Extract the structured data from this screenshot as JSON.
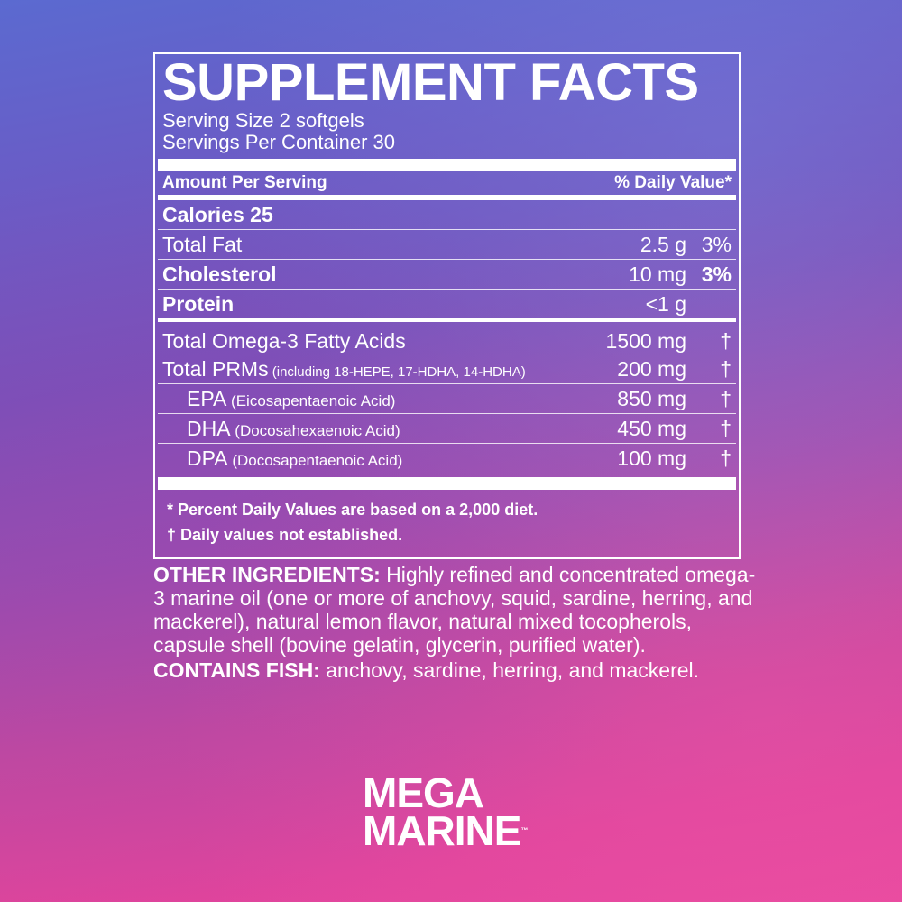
{
  "label": {
    "title": "SUPPLEMENT FACTS",
    "serving_size": "Serving Size 2 softgels",
    "servings_per_container": "Servings Per Container 30",
    "amount_header": "Amount Per Serving",
    "dv_header": "% Daily Value*",
    "calories": "Calories  25",
    "rows": [
      {
        "name": "Total Fat",
        "detail": "",
        "amount": "2.5 g",
        "dv": "3%"
      },
      {
        "name": "Cholesterol",
        "detail": "",
        "amount": "10 mg",
        "dv": "3%"
      },
      {
        "name": "Protein",
        "detail": "",
        "amount": "<1 g",
        "dv": ""
      },
      {
        "name": "Total Omega-3 Fatty Acids",
        "detail": "",
        "amount": "1500 mg",
        "dv": "†"
      },
      {
        "name": "Total PRMs",
        "detail": " (including 18-HEPE, 17-HDHA, 14-HDHA)",
        "amount": "200 mg",
        "dv": "†"
      },
      {
        "name": "EPA",
        "detail": " (Eicosapentaenoic Acid)",
        "amount": "850 mg",
        "dv": "†"
      },
      {
        "name": "DHA",
        "detail": " (Docosahexaenoic Acid)",
        "amount": "450 mg",
        "dv": "†"
      },
      {
        "name": "DPA",
        "detail": " (Docosapentaenoic Acid)",
        "amount": "100 mg",
        "dv": "†"
      }
    ],
    "footnote1": "*  Percent Daily Values are based on a 2,000 diet.",
    "footnote2": "† Daily values not established."
  },
  "other": {
    "ingredients_label": "OTHER INGREDIENTS:",
    "ingredients_text": " Highly refined and concentrated omega-3 marine oil (one or more of anchovy, squid, sardine, herring, and mackerel), natural lemon flavor, natural mixed tocopherols, capsule shell (bovine gelatin, glycerin, purified water).",
    "contains_label": "CONTAINS FISH:",
    "contains_text": " anchovy, sardine, herring, and mackerel."
  },
  "logo": {
    "line1": "MEGA",
    "line2": "MARINE",
    "tm": "™"
  }
}
